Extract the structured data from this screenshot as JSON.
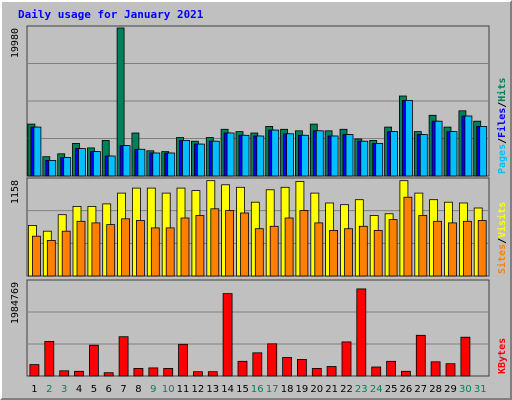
{
  "chart_data": {
    "type": "bar",
    "title": "Daily usage for January 2021",
    "days": [
      "1",
      "2",
      "3",
      "4",
      "5",
      "6",
      "7",
      "8",
      "9",
      "10",
      "11",
      "12",
      "13",
      "14",
      "15",
      "16",
      "17",
      "18",
      "19",
      "20",
      "21",
      "22",
      "23",
      "24",
      "25",
      "26",
      "27",
      "28",
      "29",
      "30",
      "31"
    ],
    "weekend_days": [
      "2",
      "3",
      "9",
      "10",
      "16",
      "17",
      "23",
      "24",
      "30",
      "31"
    ],
    "colors": {
      "day_weekday": "#000000",
      "day_weekend": "#00805c",
      "hits": "#00805c",
      "files": "#0000ff",
      "pages": "#00c0ff",
      "visits": "#ffff00",
      "sites": "#ff8000",
      "kbytes": "#ff0000",
      "title": "#0000ff",
      "panel_bg": "#c0c0c0",
      "grid": "#808080"
    },
    "panels": [
      {
        "max_label": "19980",
        "ylim": [
          0,
          19980
        ],
        "series": [
          {
            "name": "Hits",
            "values": [
              7000,
              2600,
              3000,
              4400,
              3800,
              4800,
              19980,
              5800,
              3400,
              3300,
              5200,
              4700,
              5200,
              6300,
              6000,
              5800,
              6700,
              6300,
              6100,
              7000,
              6100,
              6300,
              5000,
              4800,
              6600,
              10800,
              6000,
              8200,
              6600,
              8800,
              7400
            ]
          },
          {
            "name": "Files",
            "values": [
              6600,
              2100,
              2500,
              3700,
              3300,
              2700,
              4100,
              3600,
              3100,
              3100,
              4800,
              4300,
              4700,
              5800,
              5500,
              5400,
              6200,
              5700,
              5500,
              6100,
              5400,
              5600,
              4700,
              4400,
              6000,
              10200,
              5600,
              7400,
              6000,
              8100,
              6700
            ]
          },
          {
            "name": "Pages",
            "values": [
              6600,
              2100,
              2500,
              3700,
              3300,
              2700,
              4100,
              3600,
              3100,
              3100,
              4800,
              4300,
              4700,
              5800,
              5500,
              5400,
              6200,
              5700,
              5500,
              6100,
              5400,
              5600,
              4700,
              4400,
              6000,
              10200,
              5600,
              7400,
              6000,
              8100,
              6700
            ]
          }
        ],
        "legend": [
          "Pages",
          "Files",
          "Hits"
        ]
      },
      {
        "max_label": "1158",
        "ylim": [
          0,
          1158
        ],
        "series": [
          {
            "name": "Visits",
            "values": [
              610,
              540,
              740,
              840,
              840,
              870,
              1000,
              1060,
              1060,
              1000,
              1060,
              1030,
              1150,
              1100,
              1070,
              890,
              1040,
              1070,
              1140,
              1000,
              880,
              860,
              920,
              730,
              750,
              1150,
              1000,
              920,
              890,
              880,
              820
            ]
          },
          {
            "name": "Sites",
            "values": [
              480,
              430,
              540,
              660,
              640,
              620,
              690,
              670,
              580,
              580,
              700,
              730,
              810,
              790,
              760,
              570,
              600,
              700,
              790,
              640,
              550,
              570,
              600,
              550,
              680,
              950,
              730,
              660,
              640,
              660,
              670
            ]
          }
        ],
        "legend": [
          "Sites",
          "Visits"
        ]
      },
      {
        "max_label": "1984769",
        "ylim": [
          0,
          1984769
        ],
        "series": [
          {
            "name": "KBytes",
            "values": [
              240000,
              730000,
              110000,
              100000,
              650000,
              70000,
              830000,
              160000,
              170000,
              160000,
              670000,
              90000,
              90000,
              1740000,
              310000,
              490000,
              680000,
              390000,
              350000,
              160000,
              200000,
              720000,
              1840000,
              190000,
              310000,
              100000,
              860000,
              300000,
              260000,
              820000,
              0
            ]
          }
        ],
        "legend": [
          "KBytes"
        ]
      }
    ]
  }
}
